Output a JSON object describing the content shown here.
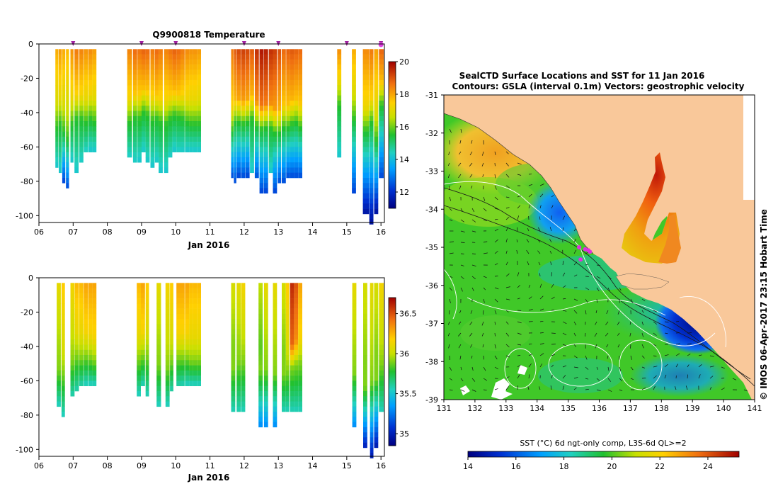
{
  "chart_data": [
    {
      "type": "heatmap",
      "title": "Q9900818  Temperature",
      "xlabel": "Jan 2016",
      "ylabel": "",
      "xlim": [
        6.0,
        16.1
      ],
      "ylim": [
        -104,
        0
      ],
      "x_ticks": [
        "06",
        "07",
        "08",
        "09",
        "10",
        "11",
        "12",
        "13",
        "14",
        "15",
        "16"
      ],
      "y_ticks": [
        "0",
        "-20",
        "-40",
        "-60",
        "-80",
        "-100"
      ],
      "colorbar": {
        "min": 11,
        "max": 20,
        "ticks": [
          "12",
          "14",
          "16",
          "18",
          "20"
        ]
      },
      "profile_markers_day": [
        7.0,
        9.0,
        10.0,
        12.0,
        13.0,
        15.0,
        16.0
      ],
      "profiles": [
        {
          "x": 6.48,
          "w": 0.09,
          "depth": 70,
          "mld": 33,
          "top": 18.0
        },
        {
          "x": 6.58,
          "w": 0.09,
          "depth": 73,
          "mld": 31,
          "top": 18.2
        },
        {
          "x": 6.68,
          "w": 0.09,
          "depth": 79,
          "mld": 35,
          "top": 18.0
        },
        {
          "x": 6.79,
          "w": 0.09,
          "depth": 83,
          "mld": 40,
          "top": 17.8
        },
        {
          "x": 6.92,
          "w": 0.09,
          "depth": 67,
          "mld": 31,
          "top": 18.3
        },
        {
          "x": 7.04,
          "w": 0.12,
          "depth": 73,
          "mld": 28,
          "top": 18.6
        },
        {
          "x": 7.18,
          "w": 0.12,
          "depth": 69,
          "mld": 28,
          "top": 18.5
        },
        {
          "x": 7.31,
          "w": 0.12,
          "depth": 63,
          "mld": 30,
          "top": 18.3
        },
        {
          "x": 7.44,
          "w": 0.12,
          "depth": 61,
          "mld": 28,
          "top": 18.4
        },
        {
          "x": 7.56,
          "w": 0.12,
          "depth": 61,
          "mld": 30,
          "top": 18.2
        },
        {
          "x": 8.58,
          "w": 0.14,
          "depth": 66,
          "mld": 30,
          "top": 18.5
        },
        {
          "x": 8.75,
          "w": 0.12,
          "depth": 69,
          "mld": 27,
          "top": 18.8
        },
        {
          "x": 8.88,
          "w": 0.12,
          "depth": 67,
          "mld": 28,
          "top": 18.7
        },
        {
          "x": 9.0,
          "w": 0.12,
          "depth": 62,
          "mld": 24,
          "top": 18.9
        },
        {
          "x": 9.12,
          "w": 0.12,
          "depth": 68,
          "mld": 26,
          "top": 18.8
        },
        {
          "x": 9.26,
          "w": 0.12,
          "depth": 70,
          "mld": 29,
          "top": 18.6
        },
        {
          "x": 9.39,
          "w": 0.11,
          "depth": 68,
          "mld": 28,
          "top": 18.8
        },
        {
          "x": 9.5,
          "w": 0.12,
          "depth": 73,
          "mld": 30,
          "top": 18.6
        },
        {
          "x": 9.66,
          "w": 0.12,
          "depth": 73,
          "mld": 31,
          "top": 18.5
        },
        {
          "x": 9.78,
          "w": 0.12,
          "depth": 66,
          "mld": 28,
          "top": 18.7
        },
        {
          "x": 9.9,
          "w": 0.12,
          "depth": 61,
          "mld": 26,
          "top": 18.9
        },
        {
          "x": 10.02,
          "w": 0.12,
          "depth": 63,
          "mld": 27,
          "top": 18.8
        },
        {
          "x": 10.14,
          "w": 0.12,
          "depth": 62,
          "mld": 28,
          "top": 18.6
        },
        {
          "x": 10.27,
          "w": 0.12,
          "depth": 61,
          "mld": 30,
          "top": 18.4
        },
        {
          "x": 10.39,
          "w": 0.12,
          "depth": 61,
          "mld": 31,
          "top": 18.3
        },
        {
          "x": 10.51,
          "w": 0.12,
          "depth": 61,
          "mld": 31,
          "top": 18.3
        },
        {
          "x": 10.63,
          "w": 0.11,
          "depth": 61,
          "mld": 31,
          "top": 18.2
        },
        {
          "x": 11.62,
          "w": 0.07,
          "depth": 77,
          "mld": 35,
          "top": 18.6
        },
        {
          "x": 11.7,
          "w": 0.07,
          "depth": 80,
          "mld": 30,
          "top": 19.0
        },
        {
          "x": 11.78,
          "w": 0.12,
          "depth": 76,
          "mld": 30,
          "top": 19.2
        },
        {
          "x": 11.91,
          "w": 0.12,
          "depth": 77,
          "mld": 31,
          "top": 19.3
        },
        {
          "x": 12.04,
          "w": 0.12,
          "depth": 76,
          "mld": 30,
          "top": 19.2
        },
        {
          "x": 12.17,
          "w": 0.12,
          "depth": 73,
          "mld": 28,
          "top": 19.0
        },
        {
          "x": 12.31,
          "w": 0.12,
          "depth": 78,
          "mld": 32,
          "top": 19.5
        },
        {
          "x": 12.45,
          "w": 0.12,
          "depth": 85,
          "mld": 34,
          "top": 19.8
        },
        {
          "x": 12.58,
          "w": 0.12,
          "depth": 85,
          "mld": 33,
          "top": 19.7
        },
        {
          "x": 12.72,
          "w": 0.12,
          "depth": 73,
          "mld": 33,
          "top": 19.5
        },
        {
          "x": 12.84,
          "w": 0.12,
          "depth": 85,
          "mld": 36,
          "top": 19.3
        },
        {
          "x": 12.98,
          "w": 0.1,
          "depth": 80,
          "mld": 36,
          "top": 19.1
        },
        {
          "x": 13.1,
          "w": 0.12,
          "depth": 80,
          "mld": 33,
          "top": 18.8
        },
        {
          "x": 13.23,
          "w": 0.11,
          "depth": 77,
          "mld": 33,
          "top": 18.9
        },
        {
          "x": 13.34,
          "w": 0.12,
          "depth": 77,
          "mld": 31,
          "top": 19.0
        },
        {
          "x": 13.46,
          "w": 0.12,
          "depth": 77,
          "mld": 30,
          "top": 18.9
        },
        {
          "x": 13.58,
          "w": 0.12,
          "depth": 77,
          "mld": 33,
          "top": 18.8
        },
        {
          "x": 14.72,
          "w": 0.12,
          "depth": 64,
          "mld": 20,
          "top": 18.4
        },
        {
          "x": 15.15,
          "w": 0.12,
          "depth": 85,
          "mld": 28,
          "top": 18.0
        },
        {
          "x": 15.47,
          "w": 0.18,
          "depth": 99,
          "mld": 35,
          "top": 18.4
        },
        {
          "x": 15.66,
          "w": 0.12,
          "depth": 104,
          "mld": 30,
          "top": 18.6
        },
        {
          "x": 15.8,
          "w": 0.12,
          "depth": 98,
          "mld": 40,
          "top": 18.1
        },
        {
          "x": 15.94,
          "w": 0.14,
          "depth": 77,
          "mld": 20,
          "top": 18.9
        }
      ]
    },
    {
      "type": "heatmap",
      "title": "",
      "xlabel": "Jan 2016",
      "ylabel": "",
      "xlim": [
        6.0,
        16.1
      ],
      "ylim": [
        -104,
        0
      ],
      "x_ticks": [
        "06",
        "07",
        "08",
        "09",
        "10",
        "11",
        "12",
        "13",
        "14",
        "15",
        "16"
      ],
      "y_ticks": [
        "0",
        "-20",
        "-40",
        "-60",
        "-80",
        "-100"
      ],
      "colorbar": {
        "min": 34.85,
        "max": 36.7,
        "ticks": [
          "35",
          "35.5",
          "36",
          "36.5"
        ]
      },
      "profiles": [
        {
          "x": 6.52,
          "w": 0.12,
          "depth": 73,
          "mld": 38,
          "top": 36.1
        },
        {
          "x": 6.66,
          "w": 0.1,
          "depth": 79,
          "mld": 40,
          "top": 36.2
        },
        {
          "x": 6.92,
          "w": 0.12,
          "depth": 69,
          "mld": 33,
          "top": 36.15
        },
        {
          "x": 7.05,
          "w": 0.12,
          "depth": 66,
          "mld": 30,
          "top": 36.25
        },
        {
          "x": 7.18,
          "w": 0.12,
          "depth": 63,
          "mld": 31,
          "top": 36.25
        },
        {
          "x": 7.31,
          "w": 0.12,
          "depth": 61,
          "mld": 30,
          "top": 36.3
        },
        {
          "x": 7.44,
          "w": 0.12,
          "depth": 61,
          "mld": 31,
          "top": 36.3
        },
        {
          "x": 7.56,
          "w": 0.12,
          "depth": 61,
          "mld": 33,
          "top": 36.3
        },
        {
          "x": 8.86,
          "w": 0.12,
          "depth": 67,
          "mld": 32,
          "top": 36.25
        },
        {
          "x": 8.98,
          "w": 0.12,
          "depth": 62,
          "mld": 30,
          "top": 36.3
        },
        {
          "x": 9.12,
          "w": 0.1,
          "depth": 68,
          "mld": 30,
          "top": 36.2
        },
        {
          "x": 9.44,
          "w": 0.13,
          "depth": 73,
          "mld": 35,
          "top": 36.1
        },
        {
          "x": 9.7,
          "w": 0.12,
          "depth": 73,
          "mld": 37,
          "top": 36.15
        },
        {
          "x": 9.83,
          "w": 0.1,
          "depth": 66,
          "mld": 33,
          "top": 36.2
        },
        {
          "x": 10.02,
          "w": 0.12,
          "depth": 63,
          "mld": 31,
          "top": 36.3
        },
        {
          "x": 10.14,
          "w": 0.12,
          "depth": 62,
          "mld": 31,
          "top": 36.3
        },
        {
          "x": 10.27,
          "w": 0.12,
          "depth": 61,
          "mld": 31,
          "top": 36.3
        },
        {
          "x": 10.39,
          "w": 0.12,
          "depth": 61,
          "mld": 33,
          "top": 36.25
        },
        {
          "x": 10.51,
          "w": 0.12,
          "depth": 61,
          "mld": 33,
          "top": 36.25
        },
        {
          "x": 10.63,
          "w": 0.11,
          "depth": 61,
          "mld": 33,
          "top": 36.25
        },
        {
          "x": 11.62,
          "w": 0.12,
          "depth": 77,
          "mld": 37,
          "top": 36.05
        },
        {
          "x": 11.78,
          "w": 0.12,
          "depth": 78,
          "mld": 33,
          "top": 36.1
        },
        {
          "x": 11.91,
          "w": 0.12,
          "depth": 77,
          "mld": 33,
          "top": 36.15
        },
        {
          "x": 12.42,
          "w": 0.12,
          "depth": 85,
          "mld": 38,
          "top": 36.0
        },
        {
          "x": 12.58,
          "w": 0.12,
          "depth": 85,
          "mld": 38,
          "top": 36.1
        },
        {
          "x": 12.84,
          "w": 0.12,
          "depth": 85,
          "mld": 40,
          "top": 36.1
        },
        {
          "x": 13.1,
          "w": 0.12,
          "depth": 77,
          "mld": 40,
          "top": 36.05
        },
        {
          "x": 13.22,
          "w": 0.1,
          "depth": 77,
          "mld": 39,
          "top": 36.2
        },
        {
          "x": 13.34,
          "w": 0.12,
          "depth": 77,
          "mld": 37,
          "top": 36.6
        },
        {
          "x": 13.46,
          "w": 0.12,
          "depth": 77,
          "mld": 35,
          "top": 36.5
        },
        {
          "x": 13.58,
          "w": 0.12,
          "depth": 77,
          "mld": 34,
          "top": 36.3
        },
        {
          "x": 15.16,
          "w": 0.12,
          "depth": 85,
          "mld": 40,
          "top": 36.1
        },
        {
          "x": 15.48,
          "w": 0.12,
          "depth": 99,
          "mld": 48,
          "top": 36.05
        },
        {
          "x": 15.68,
          "w": 0.1,
          "depth": 104,
          "mld": 45,
          "top": 36.1
        },
        {
          "x": 15.8,
          "w": 0.12,
          "depth": 98,
          "mld": 43,
          "top": 36.05
        },
        {
          "x": 15.94,
          "w": 0.14,
          "depth": 77,
          "mld": 35,
          "top": 36.15
        }
      ]
    },
    {
      "type": "heatmap",
      "title": "SealCTD Surface Locations and SST for 11 Jan 2016",
      "subtitle": "Contours: GSLA (interval 0.1m) Vectors: geostrophic velocity",
      "xlabel": "",
      "ylabel": "",
      "xlim": [
        131,
        141
      ],
      "ylim": [
        -39,
        -31
      ],
      "x_ticks": [
        "131",
        "132",
        "133",
        "134",
        "135",
        "136",
        "137",
        "138",
        "139",
        "140",
        "141"
      ],
      "y_ticks": [
        "-31",
        "-32",
        "-33",
        "-34",
        "-35",
        "-36",
        "-37",
        "-38",
        "-39"
      ],
      "colorbar": {
        "label": "SST (°C) 6d ngt-only comp, L3S-6d QL>=2",
        "min": 14,
        "max": 25.3,
        "ticks": [
          "14",
          "16",
          "18",
          "20",
          "22",
          "24"
        ]
      },
      "credit": "© IMOS 06-Apr-2017 23:15 Hobart Time",
      "seal_positions": [
        {
          "lon": 135.35,
          "lat": -35.0
        },
        {
          "lon": 135.55,
          "lat": -35.05
        },
        {
          "lon": 135.65,
          "lat": -35.08
        },
        {
          "lon": 135.4,
          "lat": -35.32
        },
        {
          "lon": 135.7,
          "lat": -35.12
        }
      ]
    }
  ]
}
